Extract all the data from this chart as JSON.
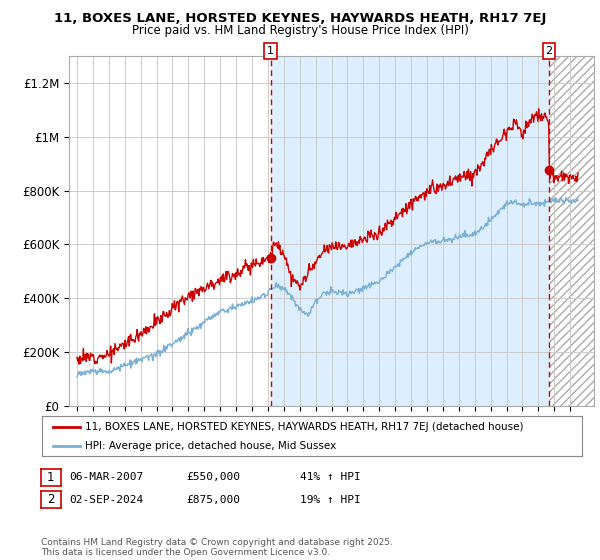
{
  "title1": "11, BOXES LANE, HORSTED KEYNES, HAYWARDS HEATH, RH17 7EJ",
  "title2": "Price paid vs. HM Land Registry's House Price Index (HPI)",
  "xlim": [
    1994.5,
    2027.5
  ],
  "ylim": [
    0,
    1300000
  ],
  "yticks": [
    0,
    200000,
    400000,
    600000,
    800000,
    1000000,
    1200000
  ],
  "ytick_labels": [
    "£0",
    "£200K",
    "£400K",
    "£600K",
    "£800K",
    "£1M",
    "£1.2M"
  ],
  "sale1_x": 2007.17,
  "sale1_y": 550000,
  "sale1_label": "1",
  "sale2_x": 2024.67,
  "sale2_y": 875000,
  "sale2_label": "2",
  "line_color_property": "#cc0000",
  "line_color_hpi": "#7bafd4",
  "vline_color": "#cc0000",
  "fill_color": "#ddeeff",
  "legend_property": "11, BOXES LANE, HORSTED KEYNES, HAYWARDS HEATH, RH17 7EJ (detached house)",
  "legend_hpi": "HPI: Average price, detached house, Mid Sussex",
  "annotation1_date": "06-MAR-2007",
  "annotation1_price": "£550,000",
  "annotation1_hpi": "41% ↑ HPI",
  "annotation2_date": "02-SEP-2024",
  "annotation2_price": "£875,000",
  "annotation2_hpi": "19% ↑ HPI",
  "footer": "Contains HM Land Registry data © Crown copyright and database right 2025.\nThis data is licensed under the Open Government Licence v3.0.",
  "background_color": "#ffffff",
  "grid_color": "#cccccc"
}
